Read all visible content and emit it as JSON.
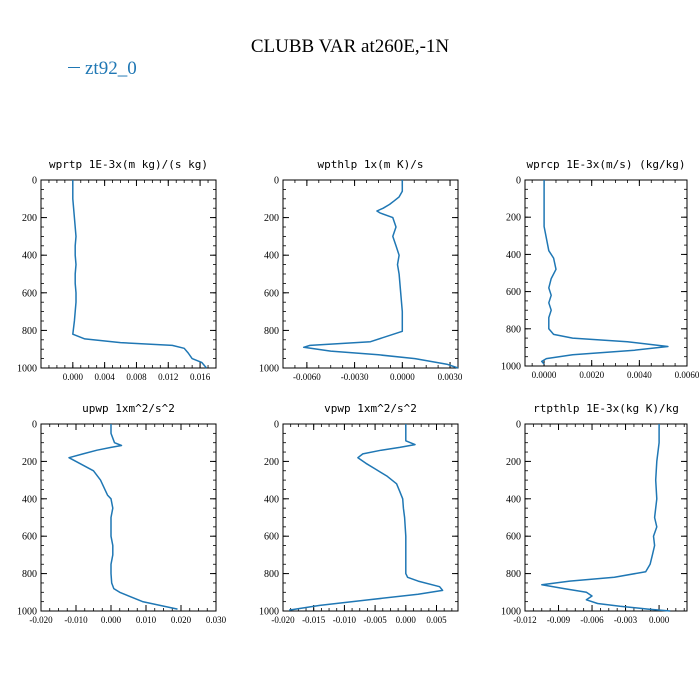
{
  "figure": {
    "title": "CLUBB VAR at260E,-1N",
    "legend_label": "zt92_0",
    "line_color": "#1f77b4"
  },
  "chart_data": [
    {
      "type": "line",
      "title": "wprtp  1E-3x(m kg)/(s kg)",
      "ylim": [
        1000,
        0
      ],
      "xlim": [
        -0.004,
        0.018
      ],
      "yticks": [
        0,
        200,
        400,
        600,
        800,
        1000
      ],
      "xticks": [
        0.0,
        0.004,
        0.008,
        0.012,
        0.016
      ],
      "xtick_labels": [
        "0.000",
        "0.004",
        "0.008",
        "0.012",
        "0.016"
      ],
      "series": [
        {
          "x": [
            0.0,
            0.0,
            0.0002,
            0.0004,
            0.0003,
            0.0003,
            0.0004,
            0.0003,
            0.0003,
            0.0004,
            0.0004,
            0.0003,
            0.0002,
            0.0,
            0.0015,
            0.006,
            0.0125,
            0.014,
            0.0145,
            0.015,
            0.0162,
            0.0168
          ],
          "y": [
            0,
            100,
            200,
            300,
            350,
            400,
            450,
            500,
            550,
            600,
            650,
            700,
            750,
            820,
            845,
            865,
            880,
            895,
            920,
            950,
            970,
            1000
          ]
        }
      ]
    },
    {
      "type": "line",
      "title": "wpthlp  1x(m K)/s",
      "ylim": [
        1000,
        0
      ],
      "xlim": [
        -0.0075,
        0.0035
      ],
      "yticks": [
        0,
        200,
        400,
        600,
        800,
        1000
      ],
      "xticks": [
        -0.006,
        -0.003,
        0.0,
        0.003
      ],
      "xtick_labels": [
        "-0.0060",
        "-0.0030",
        "0.0000",
        "0.0030"
      ],
      "series": [
        {
          "x": [
            0.0,
            0.0,
            -0.0002,
            -0.0005,
            -0.0008,
            -0.0012,
            -0.0016,
            -0.0014,
            -0.0006,
            -0.0004,
            -0.0006,
            -0.0004,
            -0.0002,
            -0.0003,
            -0.0002,
            -0.0001,
            0.0,
            0.0,
            -0.002,
            -0.0058,
            -0.0062,
            -0.0045,
            -0.0015,
            0.0008,
            0.0028,
            0.0035
          ],
          "y": [
            0,
            60,
            90,
            110,
            130,
            150,
            165,
            175,
            200,
            250,
            300,
            350,
            400,
            450,
            500,
            600,
            700,
            805,
            860,
            880,
            890,
            910,
            930,
            950,
            980,
            1000
          ]
        }
      ]
    },
    {
      "type": "line",
      "title": "wprcp  1E-3x(m/s) (kg/kg)",
      "ylim": [
        1000,
        0
      ],
      "xlim": [
        -0.0008,
        0.006
      ],
      "yticks": [
        0,
        200,
        400,
        600,
        800,
        1000
      ],
      "xticks": [
        0.0,
        0.002,
        0.004,
        0.006
      ],
      "xtick_labels": [
        "0.0000",
        "0.0020",
        "0.0040",
        "0.0060"
      ],
      "series": [
        {
          "x": [
            0.0,
            0.0,
            0.0,
            0.0002,
            0.0004,
            0.0005,
            0.0003,
            0.0002,
            0.0003,
            0.0002,
            0.0003,
            0.0002,
            0.0002,
            0.0004,
            0.0012,
            0.0035,
            0.0052,
            0.0038,
            0.0012,
            0.0001,
            -0.0001,
            0.0
          ],
          "y": [
            0,
            100,
            250,
            380,
            420,
            480,
            530,
            580,
            620,
            660,
            700,
            740,
            800,
            830,
            850,
            870,
            895,
            915,
            940,
            960,
            975,
            990
          ]
        }
      ]
    },
    {
      "type": "line",
      "title": "upwp  1xm^2/s^2",
      "ylim": [
        1000,
        0
      ],
      "xlim": [
        -0.02,
        0.03
      ],
      "yticks": [
        0,
        200,
        400,
        600,
        800,
        1000
      ],
      "xticks": [
        -0.02,
        -0.01,
        0.0,
        0.01,
        0.02,
        0.03
      ],
      "xtick_labels": [
        "-0.020",
        "-0.010",
        "0.000",
        "0.010",
        "0.020",
        "0.030"
      ],
      "series": [
        {
          "x": [
            0.0,
            0.0,
            0.001,
            0.003,
            0.0,
            -0.004,
            -0.008,
            -0.012,
            -0.009,
            -0.005,
            -0.003,
            -0.002,
            -0.001,
            0.0,
            0.0005,
            0.0,
            0.0,
            0.0005,
            0.0005,
            0.0,
            0.0,
            0.0002,
            0.0008,
            0.0025,
            0.009,
            0.019
          ],
          "y": [
            0,
            50,
            100,
            115,
            125,
            140,
            160,
            180,
            210,
            250,
            300,
            340,
            380,
            400,
            450,
            500,
            600,
            650,
            700,
            750,
            800,
            850,
            880,
            900,
            950,
            990
          ]
        }
      ]
    },
    {
      "type": "line",
      "title": "vpwp  1xm^2/s^2",
      "ylim": [
        1000,
        0
      ],
      "xlim": [
        -0.02,
        0.0085
      ],
      "yticks": [
        0,
        200,
        400,
        600,
        800,
        1000
      ],
      "xticks": [
        -0.02,
        -0.015,
        -0.01,
        -0.005,
        0.0,
        0.005
      ],
      "xtick_labels": [
        "-0.020",
        "-0.015",
        "-0.010",
        "-0.005",
        "0.000",
        "0.005"
      ],
      "series": [
        {
          "x": [
            0.0,
            0.0,
            0.0,
            0.0015,
            -0.001,
            -0.004,
            -0.007,
            -0.0078,
            -0.0065,
            -0.005,
            -0.003,
            -0.0015,
            -0.001,
            -0.0005,
            -0.0004,
            -0.0002,
            -0.0001,
            0.0,
            0.0,
            0.0,
            0.0003,
            0.002,
            0.0055,
            0.006,
            0.002,
            -0.006,
            -0.014,
            -0.019
          ],
          "y": [
            0,
            50,
            90,
            110,
            125,
            140,
            160,
            180,
            210,
            240,
            280,
            320,
            360,
            400,
            450,
            500,
            550,
            600,
            700,
            800,
            820,
            840,
            870,
            890,
            910,
            940,
            970,
            995
          ]
        }
      ]
    },
    {
      "type": "line",
      "title": "rtpthlp  1E-3x(kg K)/kg",
      "ylim": [
        1000,
        0
      ],
      "xlim": [
        -0.012,
        0.0025
      ],
      "yticks": [
        0,
        200,
        400,
        600,
        800,
        1000
      ],
      "xticks": [
        -0.012,
        -0.009,
        -0.006,
        -0.003,
        0.0
      ],
      "xtick_labels": [
        "-0.012",
        "-0.009",
        "-0.006",
        "-0.003",
        "0.000"
      ],
      "series": [
        {
          "x": [
            0.0,
            0.0,
            -0.0002,
            -0.0003,
            -0.0002,
            -0.0003,
            -0.0004,
            -0.0002,
            -0.0005,
            -0.0004,
            -0.0006,
            -0.0008,
            -0.0012,
            -0.004,
            -0.008,
            -0.0105,
            -0.0085,
            -0.0065,
            -0.006,
            -0.0065,
            -0.0055,
            -0.0035,
            -0.001,
            0.001
          ],
          "y": [
            0,
            100,
            200,
            300,
            400,
            450,
            500,
            550,
            600,
            650,
            700,
            750,
            790,
            820,
            840,
            860,
            880,
            900,
            920,
            940,
            960,
            975,
            990,
            1000
          ]
        }
      ]
    }
  ]
}
